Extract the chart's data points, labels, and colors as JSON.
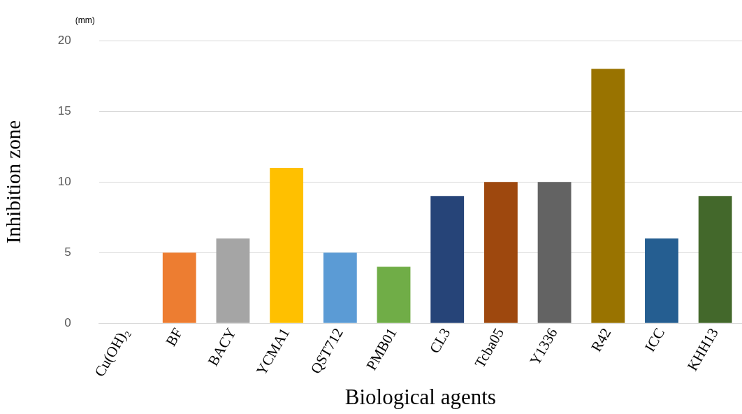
{
  "chart_data": {
    "type": "bar",
    "xlabel": "Biological agents",
    "ylabel": "Inhibition zone",
    "annotations": [
      "(mm)"
    ],
    "categories": [
      "Cu(OH)₂",
      "BF",
      "BACY",
      "YCMA1",
      "QST712",
      "PMB01",
      "CL3",
      "Tcba05",
      "Y1336",
      "R42",
      "ICC",
      "KHH13"
    ],
    "values": [
      0,
      5,
      6,
      11,
      5,
      4,
      9,
      10,
      10,
      18,
      6,
      9
    ],
    "colors": [
      "#4472c4",
      "#ed7d31",
      "#a5a5a5",
      "#ffc000",
      "#5b9bd5",
      "#70ad47",
      "#264478",
      "#9e480e",
      "#636363",
      "#997300",
      "#255e91",
      "#43682b"
    ],
    "ylim": [
      0,
      20
    ],
    "yticks": [
      0,
      5,
      10,
      15,
      20
    ],
    "grid": "y",
    "legend": false
  }
}
